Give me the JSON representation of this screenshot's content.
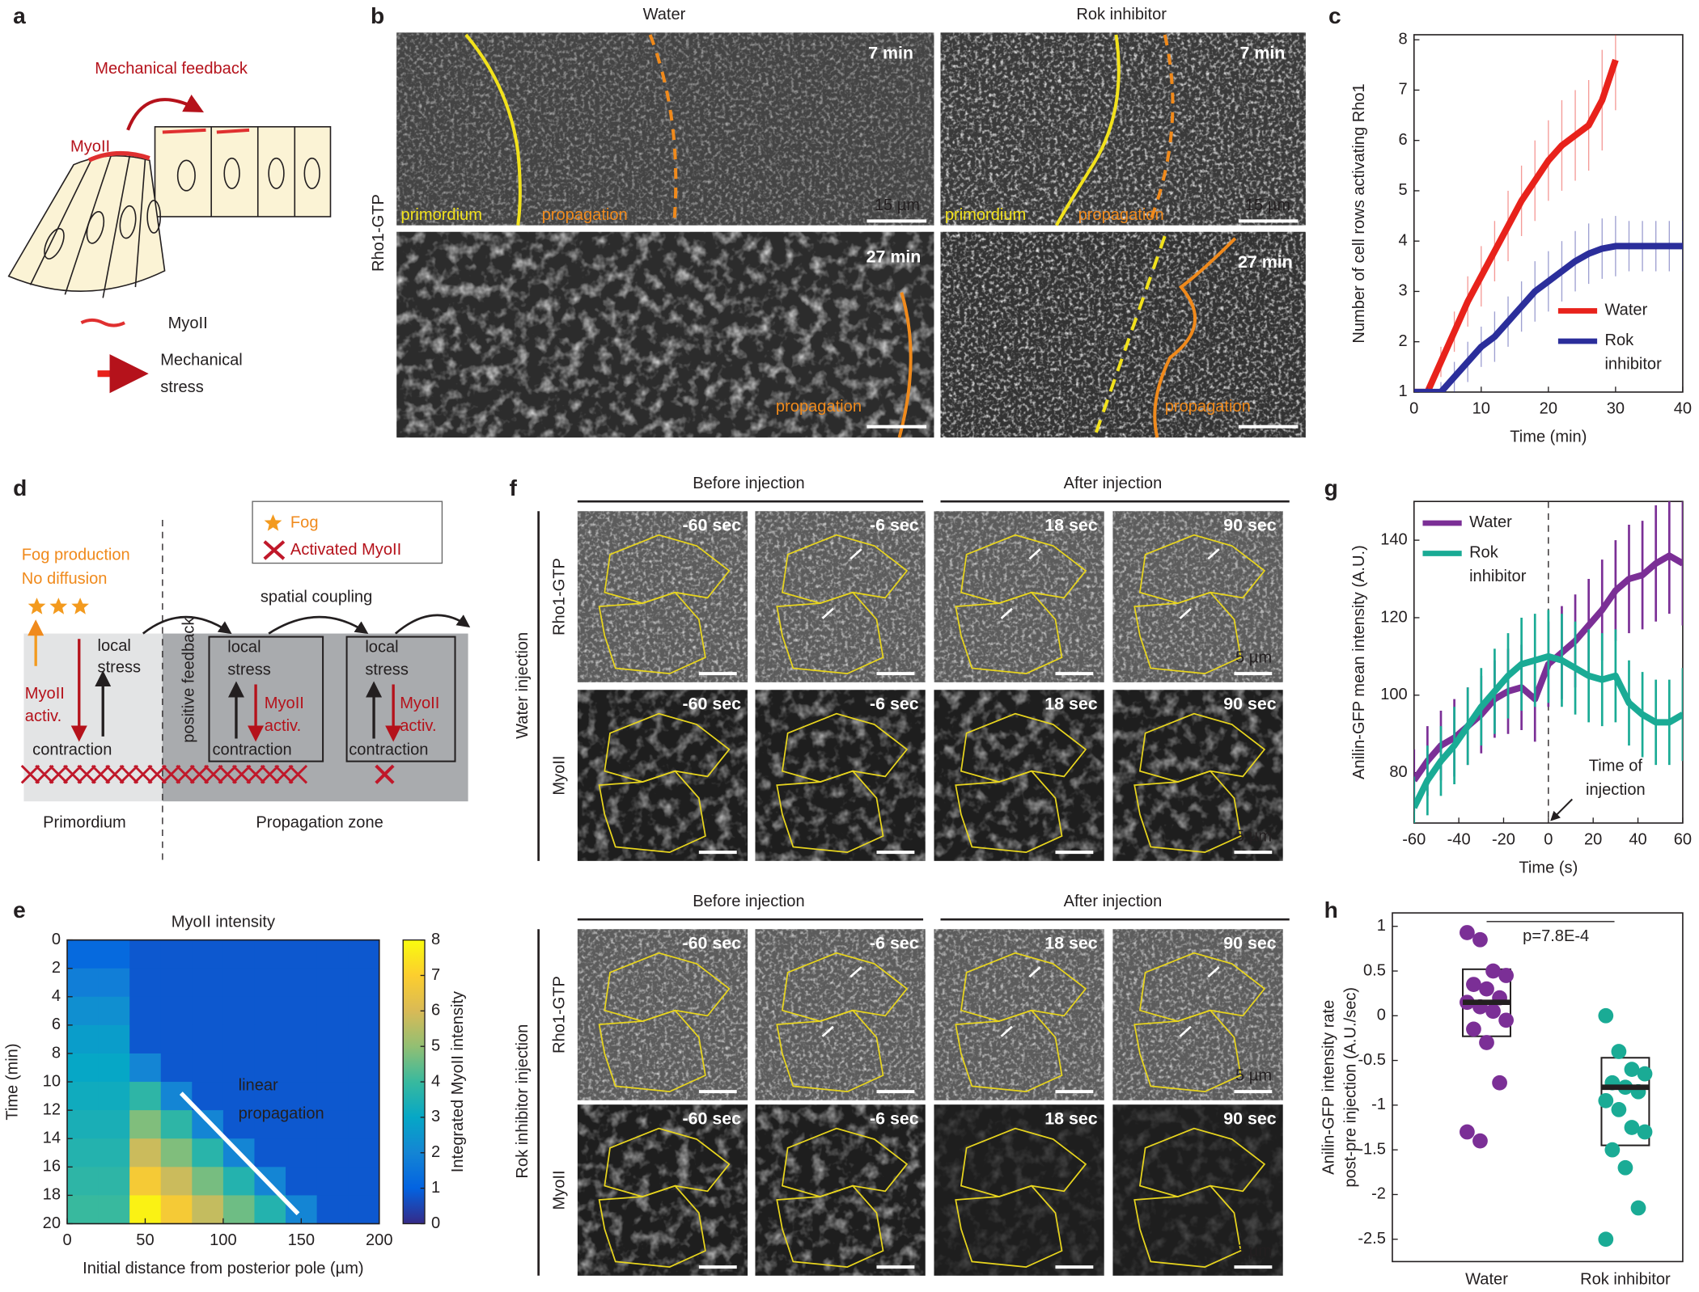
{
  "labels": [
    "a",
    "b",
    "c",
    "d",
    "e",
    "f",
    "g",
    "h"
  ],
  "panel_a": {
    "title": "Mechanical feedback",
    "myoii": "MyoII",
    "legend_myoii": "MyoII",
    "legend_stress": [
      "Mechanical",
      "stress"
    ]
  },
  "panel_b": {
    "columns": [
      "Water",
      "Rok inhibitor"
    ],
    "row_label": "Rho1-GTP",
    "times": [
      "7 min",
      "27 min"
    ],
    "scale_bar": "15 µm",
    "primordium": "primordium",
    "propagation": "propagation"
  },
  "panel_d": {
    "legend": [
      "Fog",
      "Activated MyoII"
    ],
    "fog_text": [
      "Fog production",
      "No diffusion"
    ],
    "spatial_coupling": "spatial coupling",
    "positive_feedback": "positive feedback",
    "local_stress": [
      "local",
      "stress"
    ],
    "myoii_activ": [
      "MyoII",
      "activ."
    ],
    "contraction": "contraction",
    "zones": [
      "Primordium",
      "Propagation zone"
    ]
  },
  "panel_f": {
    "phases": [
      "Before injection",
      "After injection"
    ],
    "blocks": [
      "Water injection",
      "Rok inhibitor injection"
    ],
    "rows": [
      "Rho1-GTP",
      "MyoII"
    ],
    "times": [
      "-60 sec",
      "-6 sec",
      "18 sec",
      "90 sec"
    ],
    "scale_bar": "5 µm"
  },
  "chart_data": [
    {
      "type": "heatmap",
      "title": "MyoII intensity",
      "xlabel": "Initial distance from posterior pole (µm)",
      "ylabel": "Time (min)",
      "x_bins": [
        0,
        20,
        40,
        60,
        80,
        100,
        120,
        140,
        160,
        180,
        200
      ],
      "y_bins": [
        0,
        2,
        4,
        6,
        8,
        10,
        12,
        14,
        16,
        18,
        20
      ],
      "values": [
        [
          1.2,
          1.2,
          0.8,
          0.8,
          0.8,
          0.8,
          0.8,
          0.8,
          0.8,
          0.8
        ],
        [
          1.8,
          1.8,
          0.8,
          0.8,
          0.8,
          0.8,
          0.8,
          0.8,
          0.8,
          0.8
        ],
        [
          2.3,
          2.3,
          0.8,
          0.8,
          0.8,
          0.8,
          0.8,
          0.8,
          0.8,
          0.8
        ],
        [
          2.7,
          2.7,
          0.8,
          0.8,
          0.8,
          0.8,
          0.8,
          0.8,
          0.8,
          0.8
        ],
        [
          3.0,
          3.0,
          2.0,
          0.8,
          0.8,
          0.8,
          0.8,
          0.8,
          0.8,
          0.8
        ],
        [
          3.2,
          3.2,
          3.8,
          2.0,
          0.8,
          0.8,
          0.8,
          0.8,
          0.8,
          0.8
        ],
        [
          3.4,
          3.4,
          4.8,
          3.8,
          2.0,
          0.8,
          0.8,
          0.8,
          0.8,
          0.8
        ],
        [
          3.6,
          3.6,
          5.8,
          4.8,
          3.7,
          2.0,
          0.8,
          0.8,
          0.8,
          0.8
        ],
        [
          3.8,
          3.8,
          6.8,
          5.8,
          4.7,
          3.6,
          2.0,
          0.8,
          0.8,
          0.8
        ],
        [
          4.0,
          4.0,
          7.8,
          6.8,
          5.7,
          4.6,
          3.6,
          2.0,
          0.8,
          0.8
        ]
      ],
      "xlim": [
        0,
        200
      ],
      "ylim": [
        20,
        0
      ],
      "xticks": [
        0,
        50,
        100,
        150,
        200
      ],
      "yticks": [
        0,
        2,
        4,
        6,
        8,
        10,
        12,
        14,
        16,
        18,
        20
      ],
      "colorbar": {
        "label": "Integrated MyoII intensity",
        "lim": [
          0,
          8
        ],
        "ticks": [
          0,
          1,
          2,
          3,
          4,
          5,
          6,
          7,
          8
        ]
      },
      "annotation": [
        "linear",
        "propagation"
      ],
      "annotation_line": {
        "x": [
          73,
          148
        ],
        "y": [
          10.8,
          19.3
        ]
      }
    },
    {
      "type": "line",
      "xlabel": "Time (min)",
      "ylabel": "Number of cell rows activating Rho1",
      "x": [
        0,
        2,
        4,
        6,
        8,
        10,
        12,
        14,
        16,
        18,
        20,
        22,
        24,
        26,
        28,
        30,
        32,
        34,
        36,
        38,
        40
      ],
      "series": [
        {
          "name": "Water",
          "color": "#e8221b",
          "values": [
            1,
            1,
            1.6,
            2.2,
            2.8,
            3.3,
            3.8,
            4.3,
            4.8,
            5.2,
            5.6,
            5.9,
            6.1,
            6.3,
            6.8,
            7.6,
            null,
            null,
            null,
            null,
            null
          ],
          "errors": [
            0,
            0.1,
            0.3,
            0.4,
            0.5,
            0.6,
            0.6,
            0.7,
            0.7,
            0.8,
            0.8,
            0.9,
            0.9,
            0.9,
            1.0,
            1.0,
            null,
            null,
            null,
            null,
            null
          ]
        },
        {
          "name": "Rok inhibitor",
          "color": "#2b2e9b",
          "values": [
            1,
            1,
            1,
            1.3,
            1.6,
            1.9,
            2.1,
            2.4,
            2.7,
            3.0,
            3.2,
            3.4,
            3.6,
            3.75,
            3.85,
            3.9,
            3.9,
            3.9,
            3.9,
            3.9,
            3.9
          ],
          "errors": [
            0,
            0.1,
            0.2,
            0.3,
            0.4,
            0.4,
            0.5,
            0.5,
            0.5,
            0.6,
            0.6,
            0.6,
            0.6,
            0.6,
            0.6,
            0.6,
            0.5,
            0.5,
            0.5,
            0.5,
            0.5
          ]
        }
      ],
      "xlim": [
        0,
        40
      ],
      "ylim": [
        1,
        8.1
      ],
      "xticks": [
        0,
        10,
        20,
        30,
        40
      ],
      "yticks": [
        1,
        2,
        3,
        4,
        5,
        6,
        7,
        8
      ],
      "legend": "lower right"
    },
    {
      "type": "line",
      "xlabel": "Time (s)",
      "ylabel": "Anilin-GFP mean intensity (A.U.)",
      "x": [
        -60,
        -54,
        -48,
        -42,
        -36,
        -30,
        -24,
        -18,
        -12,
        -6,
        0,
        6,
        12,
        18,
        24,
        30,
        36,
        42,
        48,
        54,
        60
      ],
      "series": [
        {
          "name": "Water",
          "color": "#7b2f96",
          "values": [
            78,
            83,
            87,
            89,
            92,
            95,
            99,
            101,
            102,
            99,
            108,
            111,
            114,
            118,
            122,
            127,
            130,
            131,
            134,
            136,
            134
          ],
          "errors": [
            8,
            9,
            9,
            10,
            10,
            10,
            10,
            11,
            11,
            11,
            11,
            12,
            12,
            12,
            13,
            13,
            14,
            14,
            15,
            15,
            16
          ]
        },
        {
          "name": "Rok inhibitor",
          "color": "#1aab95",
          "values": [
            71,
            78,
            83,
            87,
            92,
            97,
            101,
            105,
            108,
            109,
            110,
            109,
            107,
            105,
            104,
            105,
            98,
            95,
            93,
            93,
            95
          ],
          "errors": [
            8,
            9,
            9,
            10,
            10,
            10,
            11,
            11,
            12,
            12,
            12,
            12,
            12,
            12,
            12,
            12,
            11,
            11,
            11,
            11,
            12
          ]
        }
      ],
      "xlim": [
        -60,
        60
      ],
      "ylim": [
        67,
        150
      ],
      "xticks": [
        -60,
        -40,
        -20,
        0,
        20,
        40,
        60
      ],
      "yticks": [
        80,
        100,
        120,
        140
      ],
      "legend": "upper left",
      "injection_time": 0,
      "annotation": [
        "Time of",
        "injection"
      ]
    },
    {
      "type": "box",
      "ylabel": [
        "Anilin-GFP intensity rate",
        "post-pre injection (A.U./sec)"
      ],
      "categories": [
        "Water",
        "Rok inhibitor"
      ],
      "boxes": [
        {
          "color": "#7b2f96",
          "q1": -0.23,
          "median": 0.15,
          "q3": 0.52,
          "points": [
            0.93,
            0.85,
            0.5,
            0.45,
            0.35,
            0.3,
            0.2,
            0.15,
            0.1,
            0.05,
            -0.05,
            -0.15,
            -0.3,
            -0.75,
            -1.3,
            -1.4
          ]
        },
        {
          "color": "#1aab95",
          "q1": -1.45,
          "median": -0.8,
          "q3": -0.47,
          "points": [
            0,
            -0.4,
            -0.6,
            -0.65,
            -0.75,
            -0.8,
            -0.85,
            -0.95,
            -1.05,
            -1.25,
            -1.3,
            -1.5,
            -1.7,
            -2.15,
            -2.5
          ]
        }
      ],
      "ylim": [
        -2.75,
        1.15
      ],
      "yticks": [
        1,
        0.5,
        0,
        -0.5,
        -1,
        -1.5,
        -2,
        -2.5
      ],
      "annotation": "p=7.8E-4"
    }
  ]
}
